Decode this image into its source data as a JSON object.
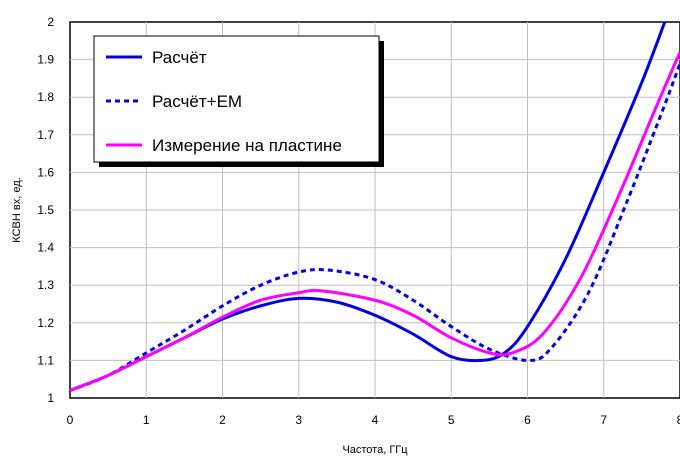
{
  "chart_data": {
    "type": "line",
    "title": "",
    "xlabel": "Частота, ГГц",
    "ylabel": "КСВН вх, ед.",
    "xlim": [
      0,
      8
    ],
    "ylim": [
      1,
      2
    ],
    "x_ticks": [
      "0",
      "1",
      "2",
      "3",
      "4",
      "5",
      "6",
      "7",
      "8"
    ],
    "y_ticks": [
      "1",
      "1.1",
      "1.2",
      "1.3",
      "1.4",
      "1.5",
      "1.6",
      "1.7",
      "1.8",
      "1.9",
      "2"
    ],
    "grid": true,
    "legend_position": "top-left",
    "series": [
      {
        "name": "Расчёт",
        "style": "solid",
        "color": "#0000dd",
        "points": [
          [
            0,
            1.02
          ],
          [
            0.5,
            1.06
          ],
          [
            1,
            1.11
          ],
          [
            1.5,
            1.16
          ],
          [
            2,
            1.21
          ],
          [
            2.5,
            1.245
          ],
          [
            3,
            1.265
          ],
          [
            3.5,
            1.255
          ],
          [
            4,
            1.22
          ],
          [
            4.5,
            1.17
          ],
          [
            5,
            1.11
          ],
          [
            5.4,
            1.1
          ],
          [
            5.7,
            1.12
          ],
          [
            6,
            1.19
          ],
          [
            6.5,
            1.37
          ],
          [
            7,
            1.6
          ],
          [
            7.5,
            1.84
          ],
          [
            7.8,
            2.0
          ]
        ]
      },
      {
        "name": "Расчёт+ЕМ",
        "style": "dashed",
        "color": "#0000dd",
        "points": [
          [
            0,
            1.02
          ],
          [
            0.5,
            1.06
          ],
          [
            1,
            1.12
          ],
          [
            1.5,
            1.18
          ],
          [
            2,
            1.245
          ],
          [
            2.5,
            1.3
          ],
          [
            3,
            1.335
          ],
          [
            3.4,
            1.34
          ],
          [
            4,
            1.315
          ],
          [
            4.5,
            1.26
          ],
          [
            5,
            1.19
          ],
          [
            5.5,
            1.13
          ],
          [
            6,
            1.1
          ],
          [
            6.3,
            1.13
          ],
          [
            6.8,
            1.28
          ],
          [
            7.3,
            1.52
          ],
          [
            7.8,
            1.78
          ],
          [
            8,
            1.89
          ]
        ]
      },
      {
        "name": "Измерение на пластине",
        "style": "solid",
        "color": "#ff00ff",
        "points": [
          [
            0,
            1.02
          ],
          [
            0.5,
            1.06
          ],
          [
            1,
            1.11
          ],
          [
            1.5,
            1.16
          ],
          [
            2,
            1.215
          ],
          [
            2.5,
            1.26
          ],
          [
            3,
            1.28
          ],
          [
            3.3,
            1.285
          ],
          [
            4,
            1.26
          ],
          [
            4.5,
            1.22
          ],
          [
            5,
            1.16
          ],
          [
            5.5,
            1.12
          ],
          [
            5.8,
            1.12
          ],
          [
            6.2,
            1.17
          ],
          [
            6.7,
            1.32
          ],
          [
            7.2,
            1.54
          ],
          [
            7.7,
            1.78
          ],
          [
            8,
            1.92
          ]
        ]
      }
    ]
  }
}
